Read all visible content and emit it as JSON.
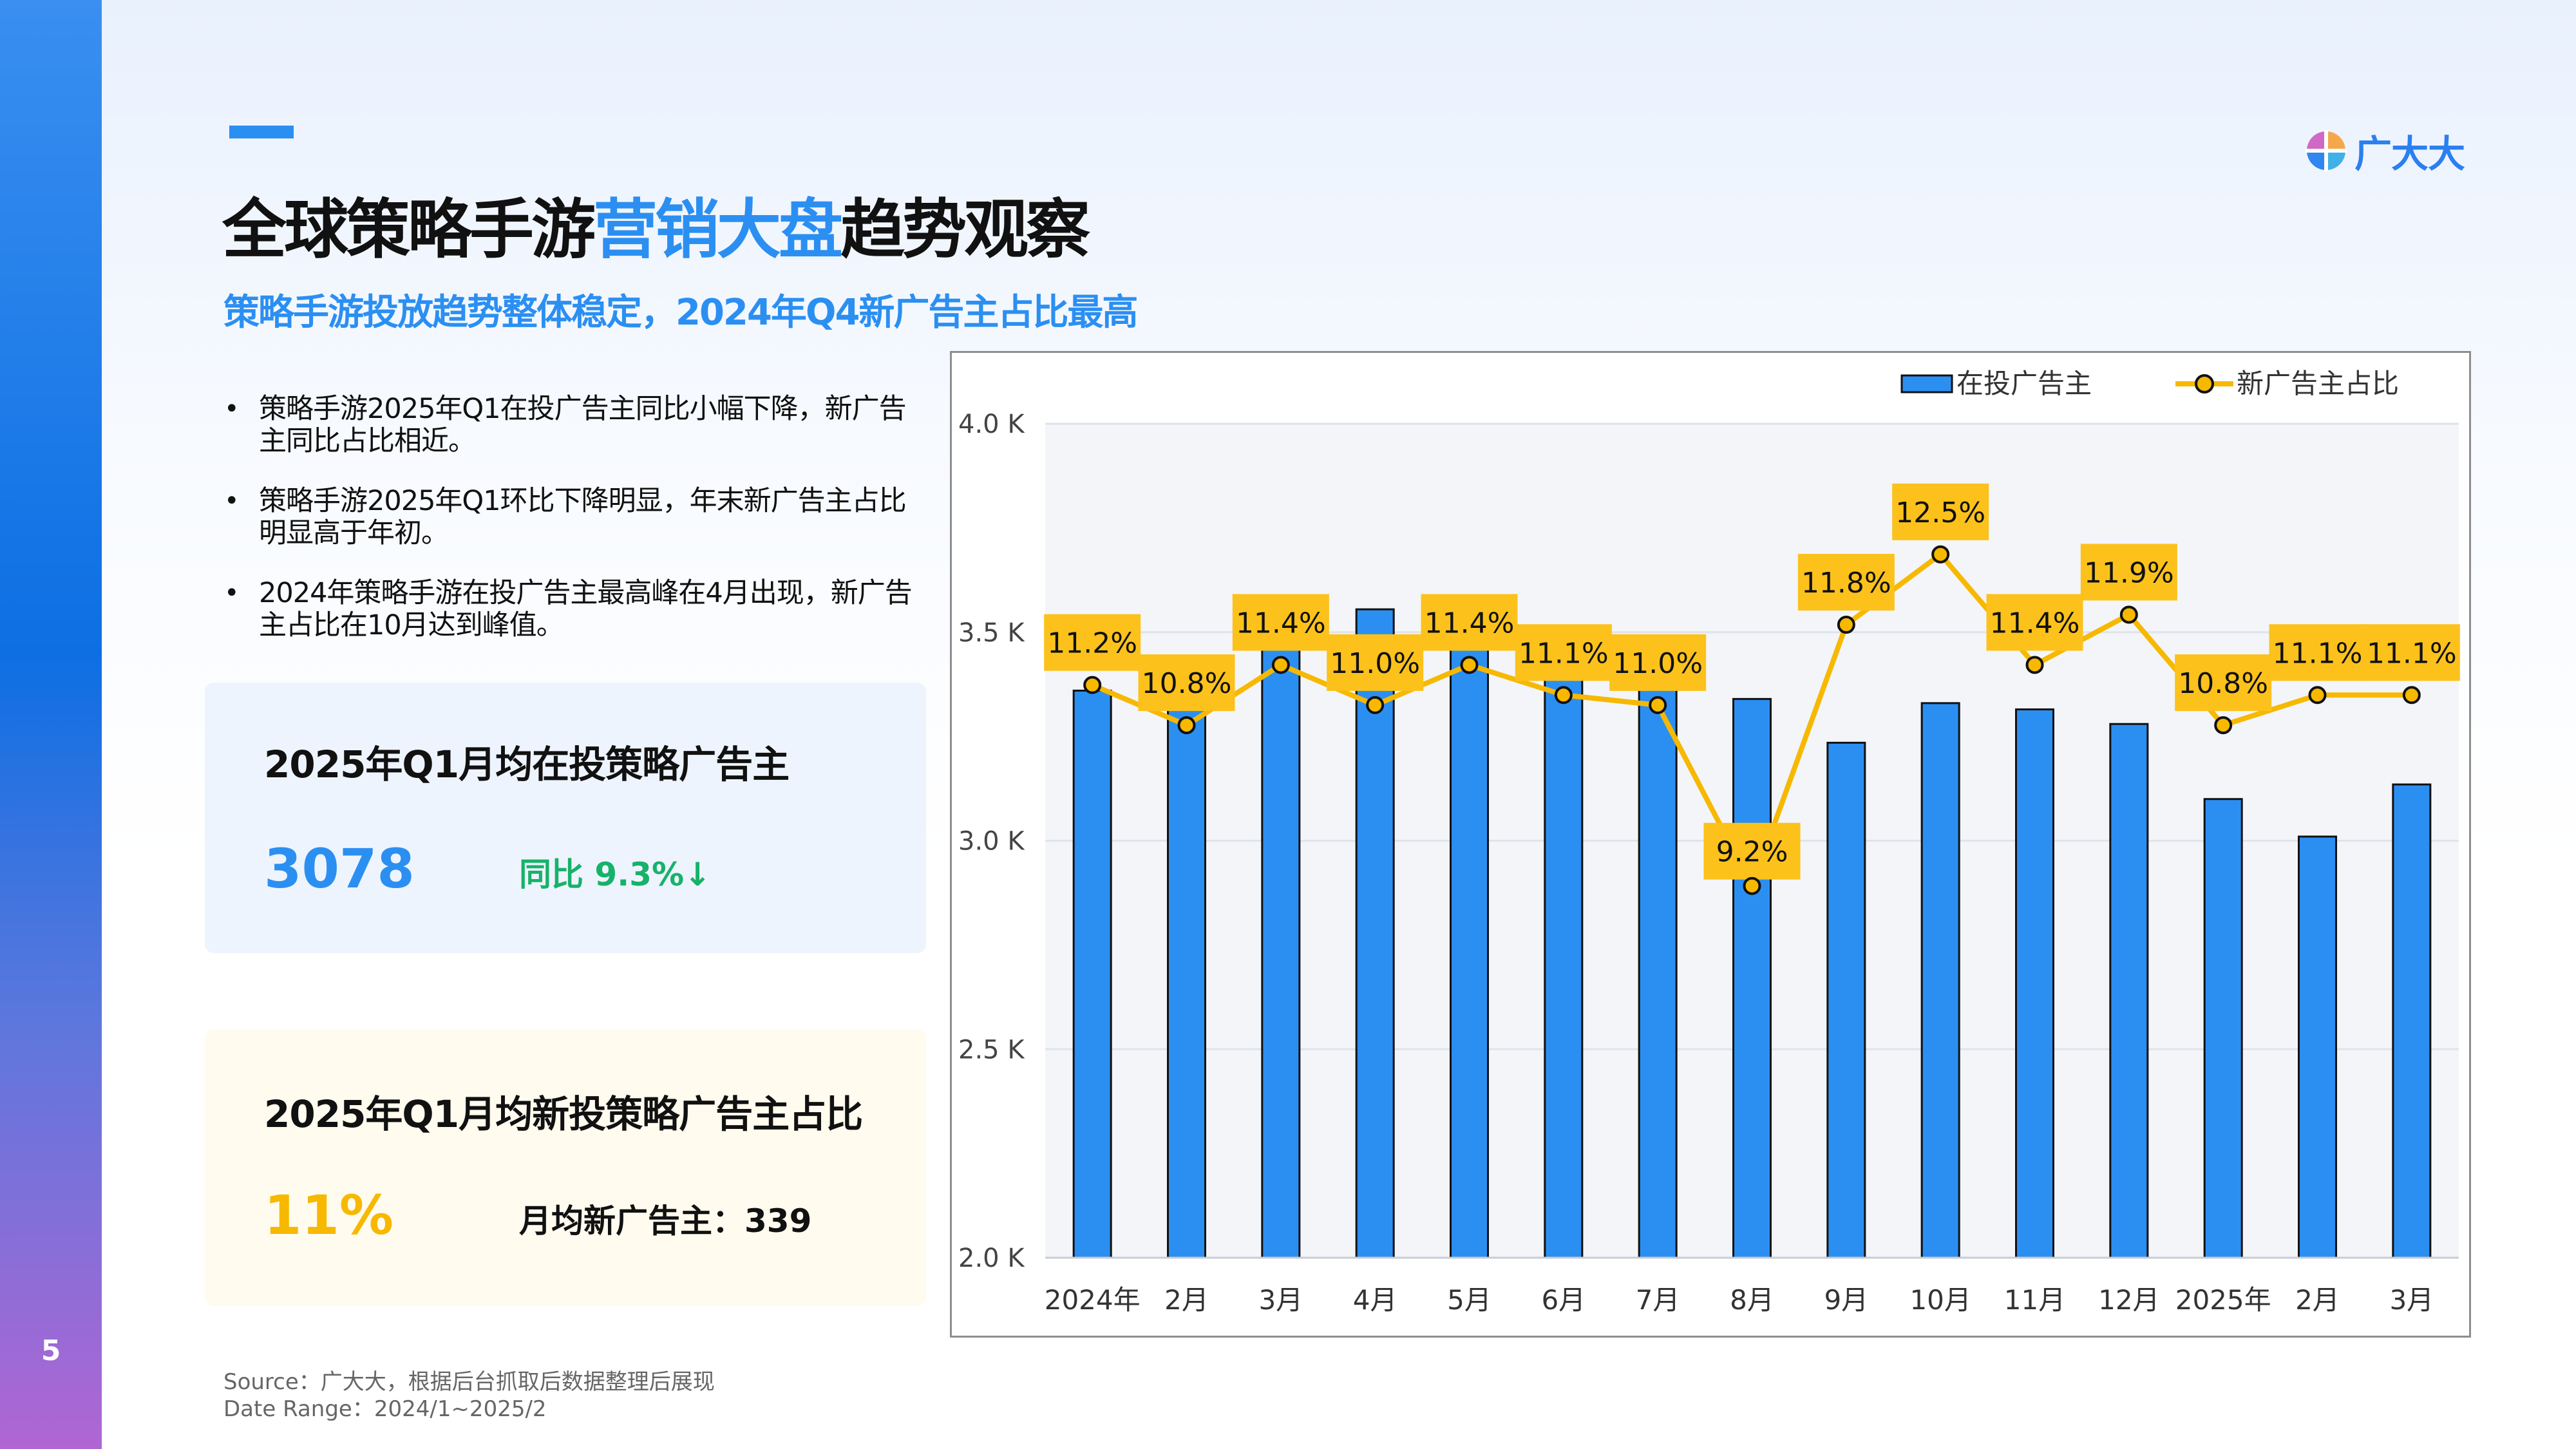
{
  "page": {
    "number": "5"
  },
  "logo": {
    "name": "广大大"
  },
  "title": {
    "part1": "全球策略手游",
    "highlight": "营销大盘",
    "part2": "趋势观察"
  },
  "subtitle": "策略手游投放趋势整体稳定，2024年Q4新广告主占比最高",
  "bullets": [
    "策略手游2025年Q1在投广告主同比小幅下降，新广告主同比占比相近。",
    "策略手游2025年Q1环比下降明显，年末新广告主占比明显高于年初。",
    "2024年策略手游在投广告主最高峰在4月出现，新广告主占比在10月达到峰值。"
  ],
  "card1": {
    "title": "2025年Q1月均在投策略广告主",
    "value": "3078",
    "note": "同比 9.3%↓"
  },
  "card2": {
    "title": "2025年Q1月均新投策略广告主占比",
    "value": "11%",
    "note": "月均新广告主：339"
  },
  "footer": {
    "source": "Source：广大大，根据后台抓取后数据整理后展现",
    "range": "Date Range：2024/1~2025/2"
  },
  "colors": {
    "accent": "#2b8ff2",
    "bar": "#2b8ff2",
    "line": "#f7b800",
    "label_bg": "#fcc21b",
    "up_green": "#17b26a"
  },
  "chart_data": {
    "type": "bar",
    "categories": [
      "2024年",
      "2月",
      "3月",
      "4月",
      "5月",
      "6月",
      "7月",
      "8月",
      "9月",
      "10月",
      "11月",
      "12月",
      "2025年",
      "2月",
      "3月"
    ],
    "series": [
      {
        "name": "在投广告主",
        "type": "bar",
        "axis": "left",
        "values": [
          3360,
          3345,
          3495,
          3555,
          3500,
          3440,
          3475,
          3340,
          3235,
          3330,
          3315,
          3280,
          3100,
          3010,
          3135
        ]
      },
      {
        "name": "新广告主占比",
        "type": "line",
        "axis": "right",
        "values": [
          11.2,
          10.8,
          11.4,
          11.0,
          11.4,
          11.1,
          11.0,
          9.2,
          11.8,
          12.5,
          11.4,
          11.9,
          10.8,
          11.1,
          11.1
        ],
        "labels": [
          "11.2%",
          "10.8%",
          "11.4%",
          "11.0%",
          "11.4%",
          "11.1%",
          "11.0%",
          "9.2%",
          "11.8%",
          "12.5%",
          "11.4%",
          "11.9%",
          "10.8%",
          "11.1%",
          "11.1%"
        ]
      }
    ],
    "y_ticks": [
      "4.0 K",
      "3.5 K",
      "3.0 K",
      "2.5 K",
      "2.0 K"
    ],
    "ylim": [
      2000,
      4000
    ],
    "y2lim": [
      5.5,
      13.8
    ],
    "legend": "top-right",
    "grid": true
  }
}
